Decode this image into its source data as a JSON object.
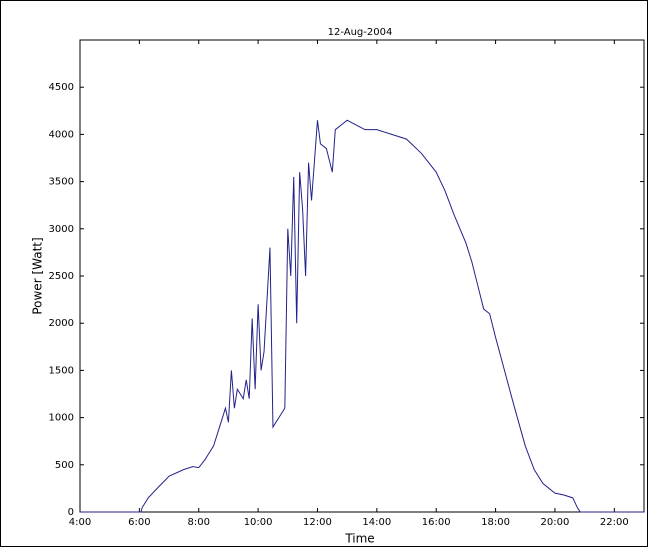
{
  "chart_data": {
    "type": "line",
    "title": "12-Aug-2004",
    "xlabel": "Time",
    "ylabel": "Power [Watt]",
    "x": [
      4,
      6.05,
      6.1,
      6.3,
      6.6,
      7.0,
      7.5,
      7.8,
      8.0,
      8.2,
      8.5,
      8.7,
      8.9,
      9.0,
      9.1,
      9.2,
      9.3,
      9.5,
      9.6,
      9.7,
      9.8,
      9.9,
      10.0,
      10.1,
      10.2,
      10.4,
      10.5,
      10.7,
      10.9,
      11.0,
      11.1,
      11.2,
      11.3,
      11.4,
      11.5,
      11.6,
      11.7,
      11.8,
      12.0,
      12.1,
      12.3,
      12.5,
      12.6,
      12.8,
      13.0,
      13.3,
      13.6,
      14.0,
      14.5,
      15.0,
      15.5,
      16.0,
      16.3,
      16.6,
      17.0,
      17.2,
      17.4,
      17.6,
      17.8,
      18.0,
      18.3,
      18.6,
      19.0,
      19.3,
      19.6,
      20.0,
      20.3,
      20.6,
      20.75,
      20.85,
      23
    ],
    "series": [
      {
        "name": "Power",
        "color": "#22228a",
        "values": [
          0,
          0,
          50,
          150,
          250,
          380,
          450,
          480,
          470,
          550,
          700,
          900,
          1100,
          950,
          1500,
          1100,
          1300,
          1200,
          1400,
          1200,
          2050,
          1300,
          2200,
          1500,
          1700,
          2800,
          900,
          1000,
          1100,
          3000,
          2500,
          3550,
          2000,
          3600,
          3200,
          2500,
          3700,
          3300,
          4150,
          3900,
          3850,
          3600,
          4050,
          4100,
          4150,
          4100,
          4050,
          4050,
          4000,
          3950,
          3800,
          3600,
          3400,
          3150,
          2850,
          2650,
          2400,
          2150,
          2100,
          1850,
          1500,
          1150,
          700,
          450,
          300,
          200,
          180,
          150,
          50,
          0,
          0
        ]
      }
    ],
    "xlim": [
      4,
      23
    ],
    "ylim": [
      0,
      5000
    ],
    "xticks": [
      {
        "value": 4,
        "label": "4:00"
      },
      {
        "value": 6,
        "label": "6:00"
      },
      {
        "value": 8,
        "label": "8:00"
      },
      {
        "value": 10,
        "label": "10:00"
      },
      {
        "value": 12,
        "label": "12:00"
      },
      {
        "value": 14,
        "label": "14:00"
      },
      {
        "value": 16,
        "label": "16:00"
      },
      {
        "value": 18,
        "label": "18:00"
      },
      {
        "value": 20,
        "label": "20:00"
      },
      {
        "value": 22,
        "label": "22:00"
      }
    ],
    "yticks": [
      0,
      500,
      1000,
      1500,
      2000,
      2500,
      3000,
      3500,
      4000,
      4500
    ]
  }
}
